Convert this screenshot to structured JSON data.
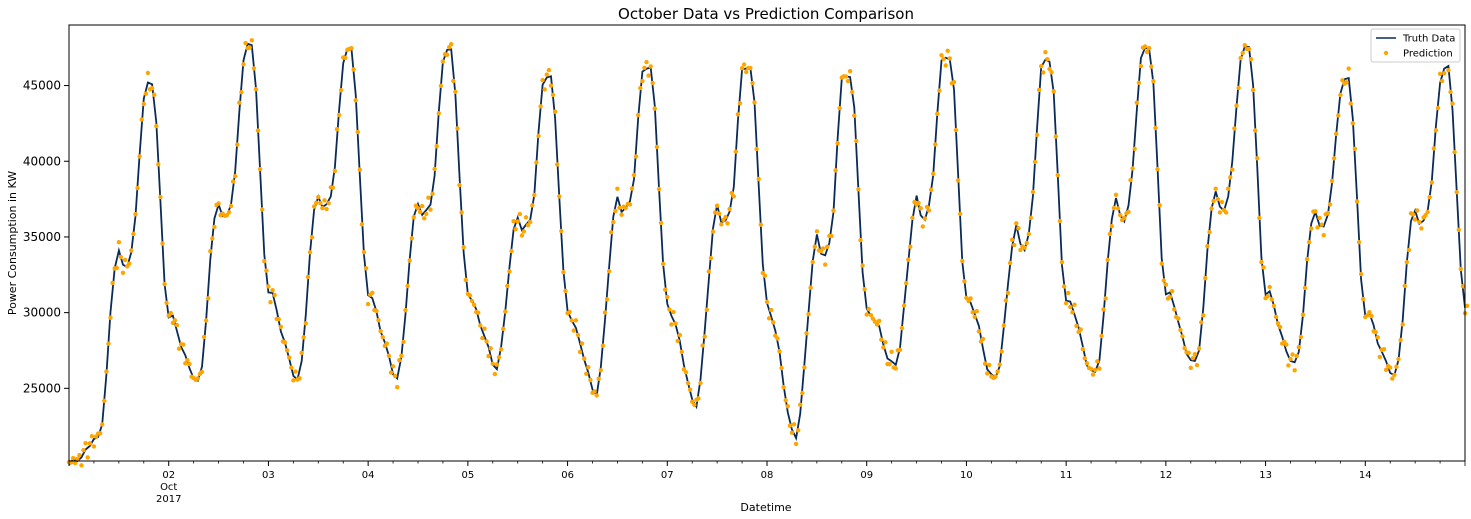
{
  "chart_data": {
    "type": "line",
    "title": "October Data vs Prediction Comparison",
    "xlabel": "Datetime",
    "ylabel": "Power Consumption in KW",
    "xlim": [
      "2017-10-01T00:00",
      "2017-10-15T00:00"
    ],
    "ylim": [
      20200,
      49000
    ],
    "yticks": [
      25000,
      30000,
      35000,
      40000,
      45000
    ],
    "xticks": [
      "02",
      "03",
      "04",
      "05",
      "06",
      "07",
      "08",
      "09",
      "10",
      "11",
      "12",
      "13",
      "14"
    ],
    "xtick_sub": [
      "Oct",
      "2017"
    ],
    "grid": false,
    "legend_position": "top-right",
    "series": [
      {
        "name": "Truth Data",
        "style": "line",
        "color": "#0a2a57"
      },
      {
        "name": "Prediction",
        "style": "points",
        "color": "#ffa500"
      }
    ],
    "daily_profile": [
      {
        "date": "2017-10-01",
        "min": 21600,
        "mid": 34200,
        "peak": 45000
      },
      {
        "date": "2017-10-02",
        "min": 25400,
        "mid": 37400,
        "peak": 47500
      },
      {
        "date": "2017-10-03",
        "min": 25600,
        "mid": 38000,
        "peak": 47200
      },
      {
        "date": "2017-10-04",
        "min": 25800,
        "mid": 37500,
        "peak": 47200
      },
      {
        "date": "2017-10-05",
        "min": 26500,
        "mid": 36500,
        "peak": 45500
      },
      {
        "date": "2017-10-06",
        "min": 24800,
        "mid": 37700,
        "peak": 46200
      },
      {
        "date": "2017-10-07",
        "min": 24000,
        "mid": 37000,
        "peak": 46300
      },
      {
        "date": "2017-10-08",
        "min": 21800,
        "mid": 34900,
        "peak": 45800
      },
      {
        "date": "2017-10-09",
        "min": 26500,
        "mid": 37400,
        "peak": 47000
      },
      {
        "date": "2017-10-10",
        "min": 25500,
        "mid": 35500,
        "peak": 46800
      },
      {
        "date": "2017-10-11",
        "min": 25800,
        "mid": 37400,
        "peak": 47500
      },
      {
        "date": "2017-10-12",
        "min": 26500,
        "mid": 38000,
        "peak": 47500
      },
      {
        "date": "2017-10-13",
        "min": 26500,
        "mid": 36800,
        "peak": 45300
      },
      {
        "date": "2017-10-14",
        "min": 25800,
        "mid": 37000,
        "peak": 46000
      }
    ]
  }
}
